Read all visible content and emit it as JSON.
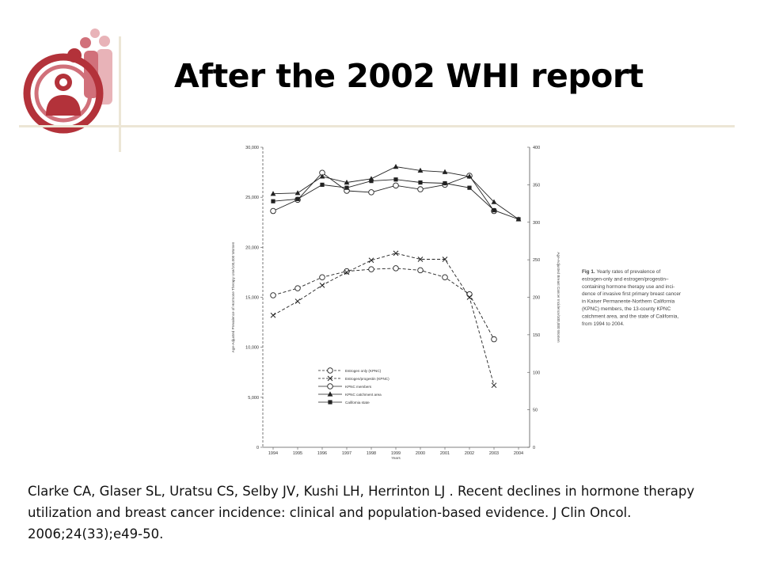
{
  "slide": {
    "title": "After the 2002 WHI report",
    "citation": "Clarke CA, Glaser SL, Uratsu CS, Selby JV, Kushi LH, Herrinton LJ . Recent declines in hormone therapy utilization and breast cancer incidence: clinical and population-based evidence. J Clin Oncol. 2006;24(33);e49-50."
  },
  "logo": {
    "icon": "people-circle-logo",
    "colors": [
      "#b3323a",
      "#d1707a",
      "#e8b3b8"
    ]
  },
  "colors": {
    "rule": "#ece6d6",
    "line": "#222222",
    "marker_fill": "#ffffff"
  },
  "chart_data": {
    "type": "line",
    "caption": {
      "label": "Fig 1.",
      "lines": [
        "Yearly rates of prevalence of",
        "estrogen-only and estrogen/progestin–",
        "containing hormone therapy use and inci-",
        "dence of invasive first primary breast cancer",
        "in Kaiser Permanente-Northern California",
        "(KPNC) members, the 13-county KPNC",
        "catchment area, and the state of California,",
        "from 1994 to 2004."
      ]
    },
    "xlabel": "Years",
    "ylabel_left": "Age-Adjusted Prevalence of Hormone Therapy Use/100,000 Women",
    "ylabel_right": "Age-Adjusted Breast Cancer Incidence/100,000 Women",
    "x": [
      1994,
      1995,
      1996,
      1997,
      1998,
      1999,
      2000,
      2001,
      2002,
      2003,
      2004
    ],
    "ylim_left": [
      0,
      30000
    ],
    "yticks_left": [
      "0",
      "5,000",
      "10,000",
      "15,000",
      "20,000",
      "25,000",
      "30,000"
    ],
    "ylim_right": [
      0,
      400
    ],
    "yticks_right": [
      "0",
      "50",
      "100",
      "150",
      "200",
      "250",
      "300",
      "350",
      "400"
    ],
    "grid": false,
    "legend_position": "bottom-center",
    "series": [
      {
        "name": "Estrogen only (KPNC)",
        "axis": "left",
        "dash": true,
        "marker": "circle-open",
        "values": [
          15200,
          15900,
          17000,
          17600,
          17800,
          17900,
          17700,
          17000,
          15300,
          10800,
          null
        ]
      },
      {
        "name": "Estrogen/progestin (KPNC)",
        "axis": "left",
        "dash": true,
        "marker": "x",
        "values": [
          13200,
          14600,
          16200,
          17500,
          18700,
          19400,
          18800,
          18800,
          15000,
          6200,
          null
        ]
      },
      {
        "name": "KPNC members",
        "axis": "right",
        "dash": false,
        "marker": "circle-open",
        "values": [
          315,
          330,
          366,
          342,
          340,
          349,
          344,
          350,
          362,
          315,
          null
        ]
      },
      {
        "name": "KPNC catchment area",
        "axis": "right",
        "dash": false,
        "marker": "triangle",
        "values": [
          338,
          339,
          361,
          353,
          358,
          374,
          369,
          367,
          361,
          327,
          304
        ]
      },
      {
        "name": "California state",
        "axis": "right",
        "dash": false,
        "marker": "square",
        "values": [
          328,
          331,
          350,
          346,
          355,
          357,
          353,
          352,
          346,
          316,
          304
        ]
      }
    ]
  }
}
